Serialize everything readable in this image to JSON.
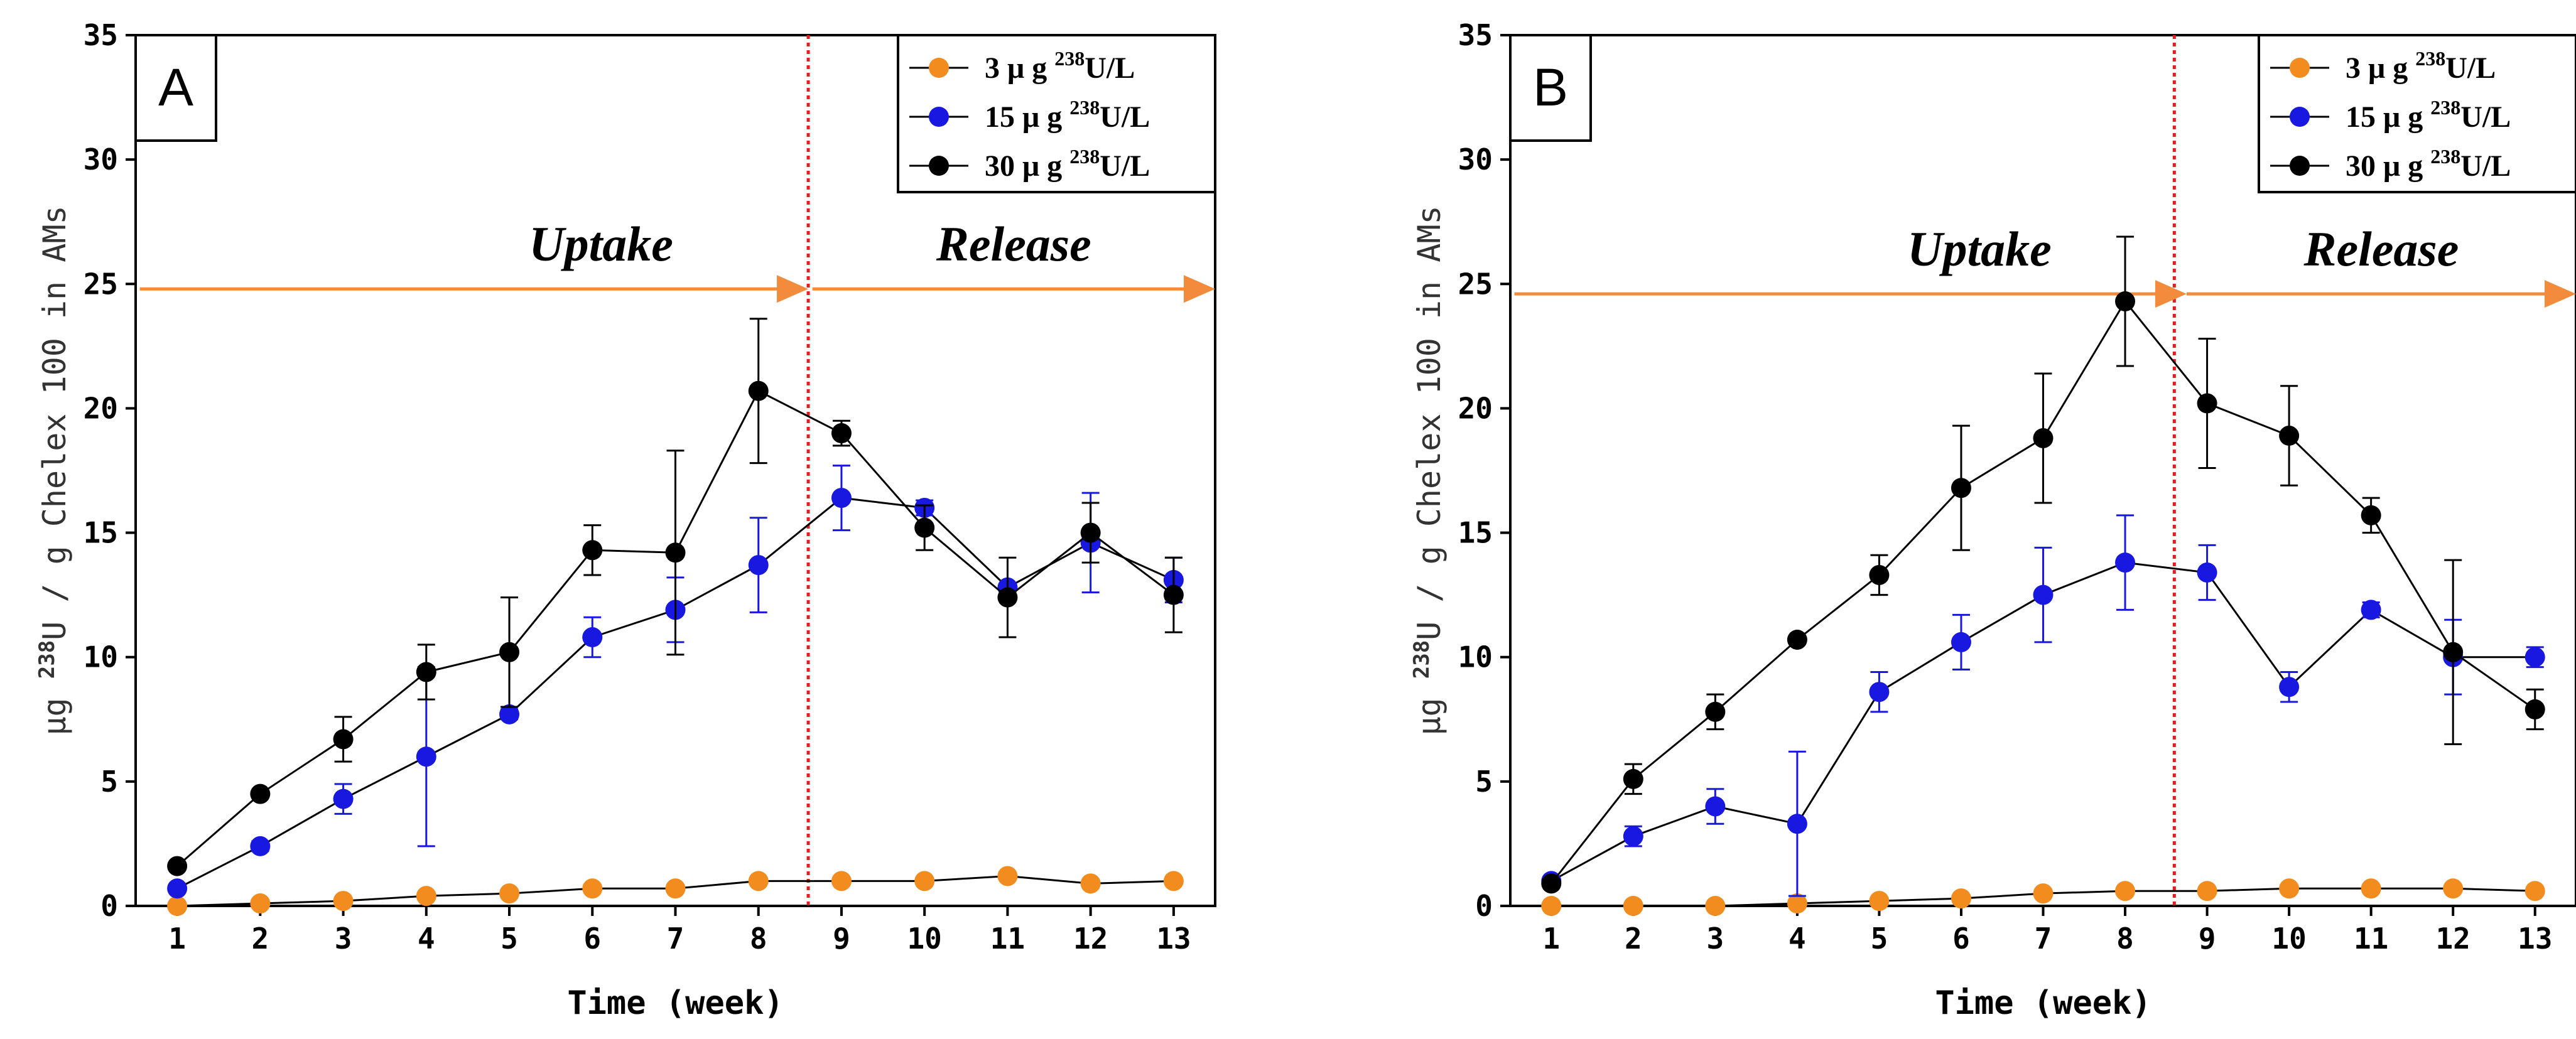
{
  "chart_data": [
    {
      "type": "line",
      "panel_label": "A",
      "xlabel": "Time (week)",
      "ylabel_unit": "μg",
      "ylabel_superscript": "238",
      "ylabel_rest": "U / g Chelex 100 in AMs",
      "xlim": [
        0.5,
        13.5
      ],
      "ylim": [
        0,
        35
      ],
      "yticks": [
        0,
        5,
        10,
        15,
        20,
        25,
        30,
        35
      ],
      "x": [
        1,
        2,
        3,
        4,
        5,
        6,
        7,
        8,
        9,
        10,
        11,
        12,
        13
      ],
      "divider_x": 8.6,
      "phases": [
        {
          "label": "Uptake",
          "arrow_from": 0.55,
          "arrow_to": 8.6,
          "y": 24.8
        },
        {
          "label": "Release",
          "arrow_from": 8.65,
          "arrow_to": 13.5,
          "y": 24.8
        }
      ],
      "legend_position": "top-right",
      "series": [
        {
          "legend_prefix": "3 μ g ",
          "legend_sup": "238",
          "legend_suffix": "U/L",
          "color": "#F28C1E",
          "values": [
            0.0,
            0.1,
            0.2,
            0.4,
            0.5,
            0.7,
            0.7,
            1.0,
            1.0,
            1.0,
            1.2,
            0.9,
            1.0
          ],
          "errors": [
            0,
            0,
            0,
            0,
            0,
            0,
            0,
            0,
            0,
            0,
            0,
            0,
            0
          ]
        },
        {
          "legend_prefix": "15 μ g ",
          "legend_sup": "238",
          "legend_suffix": "U/L",
          "color": "#1818E0",
          "values": [
            0.7,
            2.4,
            4.3,
            6.0,
            7.7,
            10.8,
            11.9,
            13.7,
            16.4,
            16.0,
            12.8,
            14.6,
            13.1
          ],
          "errors": [
            0,
            0.2,
            0.6,
            3.6,
            0.2,
            0.8,
            1.3,
            1.9,
            1.3,
            0.3,
            0,
            2.0,
            0.9
          ]
        },
        {
          "legend_prefix": "30 μ g ",
          "legend_sup": "238",
          "legend_suffix": "U/L",
          "color": "#000000",
          "values": [
            1.6,
            4.5,
            6.7,
            9.4,
            10.2,
            14.3,
            14.2,
            20.7,
            19.0,
            15.2,
            12.4,
            15.0,
            12.5
          ],
          "errors": [
            0,
            0,
            0.9,
            1.1,
            2.2,
            1.0,
            4.1,
            2.9,
            0.5,
            0.9,
            1.6,
            1.2,
            1.5
          ]
        }
      ]
    },
    {
      "type": "line",
      "panel_label": "B",
      "xlabel": "Time (week)",
      "ylabel_unit": "μg",
      "ylabel_superscript": "238",
      "ylabel_rest": "U / g Chelex 100 in AMs",
      "xlim": [
        0.5,
        13.5
      ],
      "ylim": [
        0,
        35
      ],
      "yticks": [
        0,
        5,
        10,
        15,
        20,
        25,
        30,
        35
      ],
      "x": [
        1,
        2,
        3,
        4,
        5,
        6,
        7,
        8,
        9,
        10,
        11,
        12,
        13
      ],
      "divider_x": 8.6,
      "phases": [
        {
          "label": "Uptake",
          "arrow_from": 0.55,
          "arrow_to": 8.75,
          "y": 24.6
        },
        {
          "label": "Release",
          "arrow_from": 8.75,
          "arrow_to": 13.5,
          "y": 24.6
        }
      ],
      "legend_position": "top-right",
      "series": [
        {
          "legend_prefix": "3 μ g ",
          "legend_sup": "238",
          "legend_suffix": "U/L",
          "color": "#F28C1E",
          "values": [
            0.0,
            0.0,
            0.0,
            0.1,
            0.2,
            0.3,
            0.5,
            0.6,
            0.6,
            0.7,
            0.7,
            0.7,
            0.6
          ],
          "errors": [
            0,
            0,
            0,
            0,
            0,
            0,
            0,
            0,
            0,
            0,
            0,
            0,
            0
          ]
        },
        {
          "legend_prefix": "15 μ g ",
          "legend_sup": "238",
          "legend_suffix": "U/L",
          "color": "#1818E0",
          "values": [
            1.0,
            2.8,
            4.0,
            3.3,
            8.6,
            10.6,
            12.5,
            13.8,
            13.4,
            8.8,
            11.9,
            10.0,
            10.0
          ],
          "errors": [
            0,
            0.4,
            0.7,
            2.9,
            0.8,
            1.1,
            1.9,
            1.9,
            1.1,
            0.6,
            0.3,
            1.5,
            0.4
          ]
        },
        {
          "legend_prefix": "30 μ g ",
          "legend_sup": "238",
          "legend_suffix": "U/L",
          "color": "#000000",
          "values": [
            0.9,
            5.1,
            7.8,
            10.7,
            13.3,
            16.8,
            18.8,
            24.3,
            20.2,
            18.9,
            15.7,
            10.2,
            7.9
          ],
          "errors": [
            0,
            0.6,
            0.7,
            0,
            0.8,
            2.5,
            2.6,
            2.6,
            2.6,
            2.0,
            0.7,
            3.7,
            0.8
          ]
        }
      ]
    }
  ]
}
